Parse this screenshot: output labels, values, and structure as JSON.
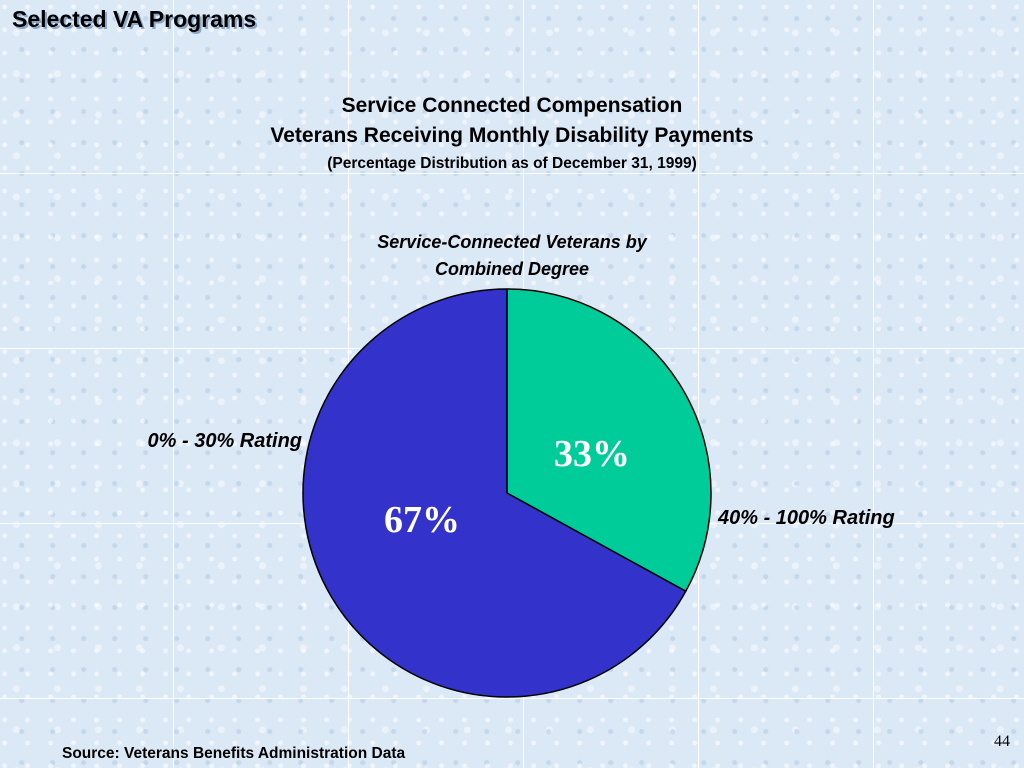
{
  "header": {
    "section_title": "Selected VA Programs"
  },
  "chart_data": {
    "type": "pie",
    "title": "Service Connected Compensation",
    "subtitle_lines": [
      "Veterans Receiving Monthly Disability Payments",
      "(Percentage Distribution as of December 31, 1999)"
    ],
    "chart_title_lines": [
      "Service-Connected Veterans by",
      "Combined Degree"
    ],
    "slices": [
      {
        "label": "40% - 100% Rating",
        "value": 33,
        "value_label": "33%",
        "color": "#00cc99"
      },
      {
        "label": "0% - 30% Rating",
        "value": 67,
        "value_label": "67%",
        "color": "#3333cc"
      }
    ],
    "start_angle_deg": 0,
    "direction": "clockwise"
  },
  "footer": {
    "source": "Source:  Veterans Benefits Administration Data",
    "page_number": "44"
  }
}
